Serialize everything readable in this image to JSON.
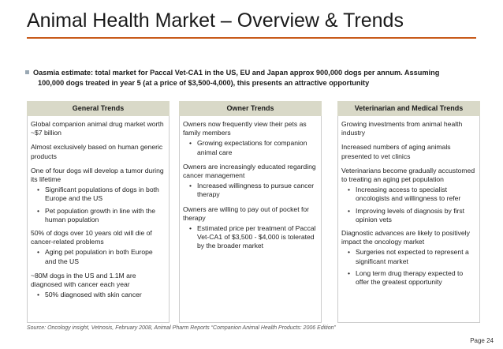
{
  "title": "Animal Health Market – Overview & Trends",
  "main_bullet": {
    "line1": "Oasmia estimate: total market for Paccal Vet-CA1 in the US, EU and Japan approx 900,000 dogs per annum.  Assuming",
    "line2": "100,000 dogs treated in year 5 (at a price of $3,500-4,000), this presents an attractive opportunity"
  },
  "columns": [
    {
      "header": "General Trends",
      "p1": "Global companion animal drug market worth ~$7 billion",
      "p2": "Almost exclusively based on human generic products",
      "p3": "One of four dogs will develop a tumor during its lifetime",
      "p3_b1": "Significant populations of dogs in both Europe and the US",
      "p3_b2": "Pet population growth in line with the human population",
      "p4": "50% of dogs over 10 years old will die of cancer-related problems",
      "p4_b1": "Aging pet population in both Europe and the US",
      "p5": "~80M dogs in the US and 1.1M are diagnosed with cancer each year",
      "p5_b1": "50% diagnosed with skin cancer"
    },
    {
      "header": "Owner Trends",
      "p1": "Owners now frequently view their pets as family members",
      "p1_b1": "Growing expectations for companion animal care",
      "p2": "Owners are increasingly educated regarding cancer management",
      "p2_b1": "Increased willingness to pursue cancer therapy",
      "p3": "Owners are willing to pay out of pocket for therapy",
      "p3_b1": "Estimated price per treatment of Paccal Vet-CA1 of $3,500 - $4,000 is tolerated by the broader market"
    },
    {
      "header": "Veterinarian and Medical Trends",
      "p1": "Growing investments from animal health industry",
      "p2": "Increased numbers of aging animals presented to vet clinics",
      "p3": "Veterinarians become gradually accustomed to treating an aging pet population",
      "p3_b1": "Increasing access to specialist oncologists and willingness to refer",
      "p3_b2": "Improving levels of diagnosis by first opinion vets",
      "p4": "Diagnostic advances are likely to positively impact the oncology market",
      "p4_b1": "Surgeries not expected to represent a significant market",
      "p4_b2": "Long term drug therapy expected to offer the greatest opportunity"
    }
  ],
  "source": "Source: Oncology insight, Vetnosis, February 2008, Animal Pharm Reports “Companion Animal Health Products: 2006 Edition”",
  "page": "Page 24",
  "colors": {
    "accent_rule": "#c85a1a",
    "header_bg": "#d9d9c8"
  }
}
